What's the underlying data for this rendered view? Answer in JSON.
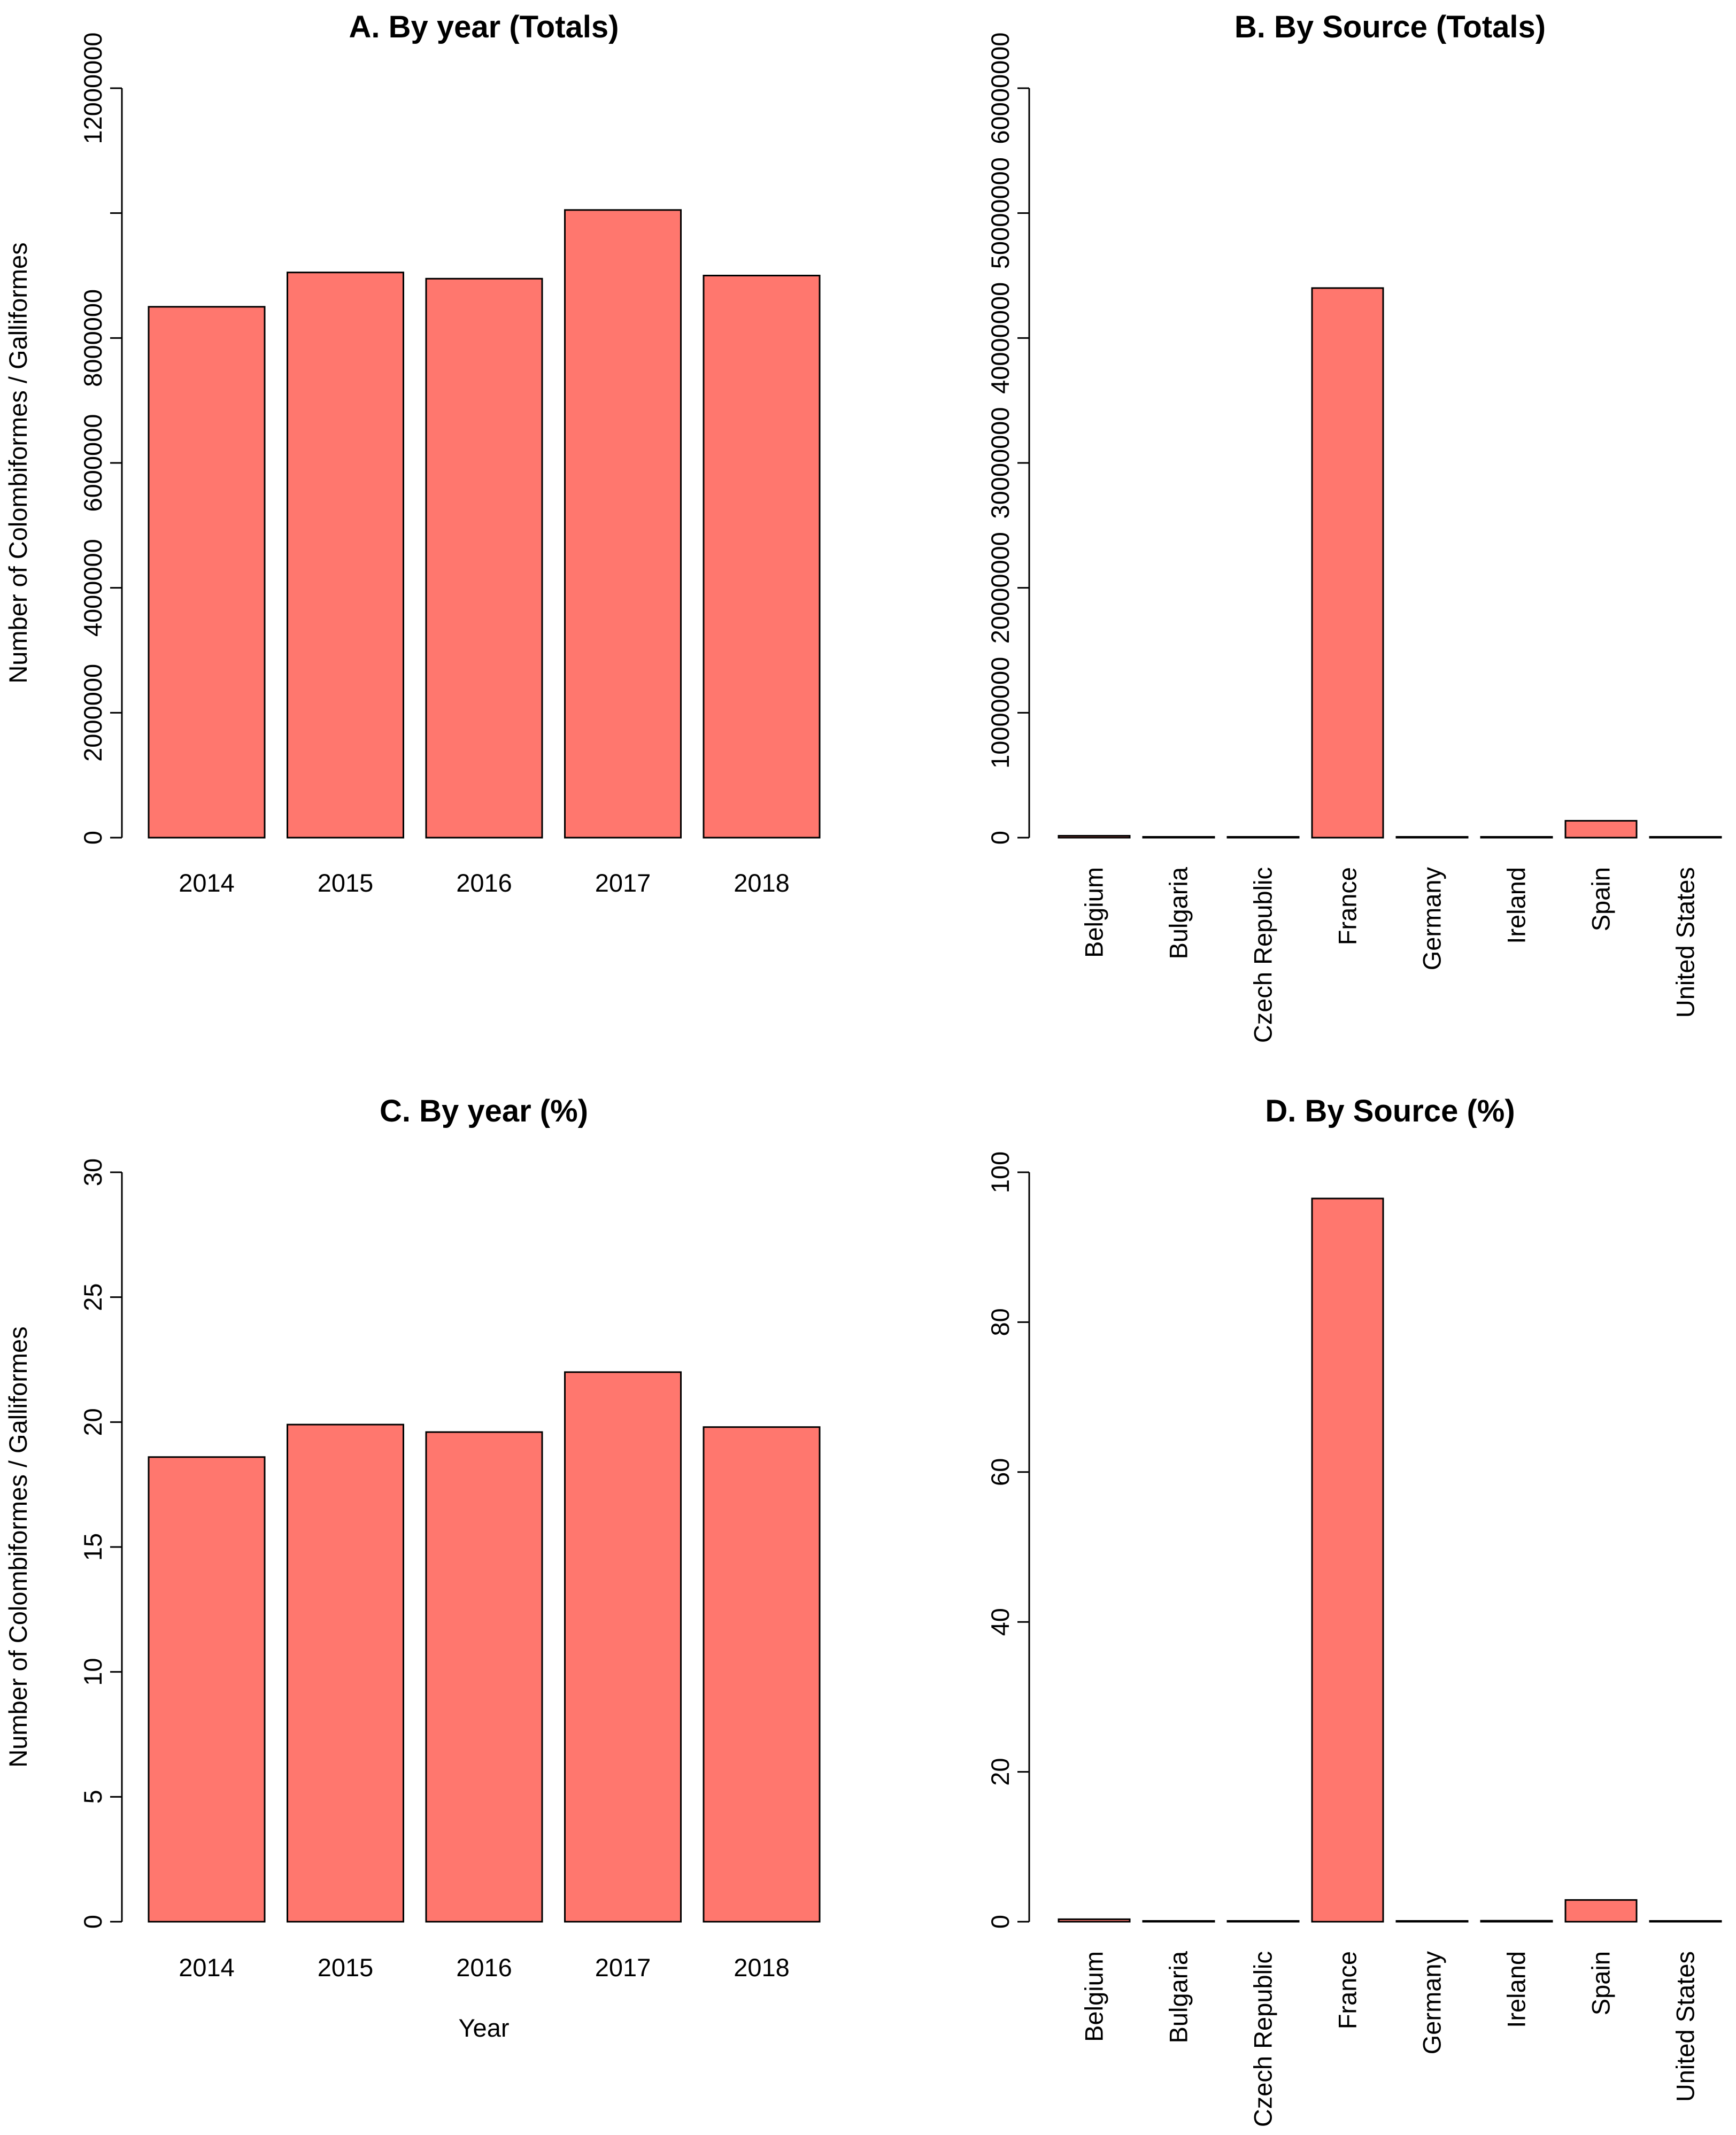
{
  "colors": {
    "bar_fill": "#ff776e",
    "bar_stroke": "#000000",
    "axis": "#000000",
    "background": "#ffffff"
  },
  "chart_data": [
    {
      "id": "A",
      "type": "bar",
      "title": "A. By year (Totals)",
      "categories": [
        "2014",
        "2015",
        "2016",
        "2017",
        "2018"
      ],
      "values": [
        8500000,
        9050000,
        8950000,
        10050000,
        9000000
      ],
      "ylim": [
        0,
        12000000
      ],
      "yticks": [
        0,
        2000000,
        4000000,
        6000000,
        8000000,
        10000000,
        12000000
      ],
      "ytick_labels": [
        "0",
        "2000000",
        "4000000",
        "6000000",
        "8000000",
        "",
        "12000000"
      ],
      "ylabel": "Number of Colombiformes / Galliformes",
      "xlabel": ""
    },
    {
      "id": "B",
      "type": "bar",
      "title": "B. By Source (Totals)",
      "categories": [
        "Belgium",
        "Bulgaria",
        "Czech Republic",
        "France",
        "Germany",
        "Ireland",
        "Spain",
        "United States"
      ],
      "values": [
        150000,
        5000,
        3000,
        44000000,
        10000,
        60000,
        1350000,
        30000
      ],
      "ylim": [
        0,
        60000000
      ],
      "yticks": [
        0,
        10000000,
        20000000,
        30000000,
        40000000,
        50000000,
        60000000
      ],
      "ytick_labels": [
        "0",
        "10000000",
        "20000000",
        "30000000",
        "40000000",
        "50000000",
        "60000000"
      ],
      "ylabel": "",
      "xlabel": ""
    },
    {
      "id": "C",
      "type": "bar",
      "title": "C. By year (%)",
      "categories": [
        "2014",
        "2015",
        "2016",
        "2017",
        "2018"
      ],
      "values": [
        18.6,
        19.9,
        19.6,
        22.0,
        19.8
      ],
      "ylim": [
        0,
        30
      ],
      "yticks": [
        0,
        5,
        10,
        15,
        20,
        25,
        30
      ],
      "ytick_labels": [
        "0",
        "5",
        "10",
        "15",
        "20",
        "25",
        "30"
      ],
      "ylabel": "Number of Colombiformes / Galliformes",
      "xlabel": "Year"
    },
    {
      "id": "D",
      "type": "bar",
      "title": "D. By Source (%)",
      "categories": [
        "Belgium",
        "Bulgaria",
        "Czech Republic",
        "France",
        "Germany",
        "Ireland",
        "Spain",
        "United States"
      ],
      "values": [
        0.33,
        0.01,
        0.01,
        96.5,
        0.02,
        0.13,
        2.9,
        0.07
      ],
      "ylim": [
        0,
        100
      ],
      "yticks": [
        0,
        20,
        40,
        60,
        80,
        100
      ],
      "ytick_labels": [
        "0",
        "20",
        "40",
        "60",
        "80",
        "100"
      ],
      "ylabel": "",
      "xlabel": ""
    }
  ]
}
